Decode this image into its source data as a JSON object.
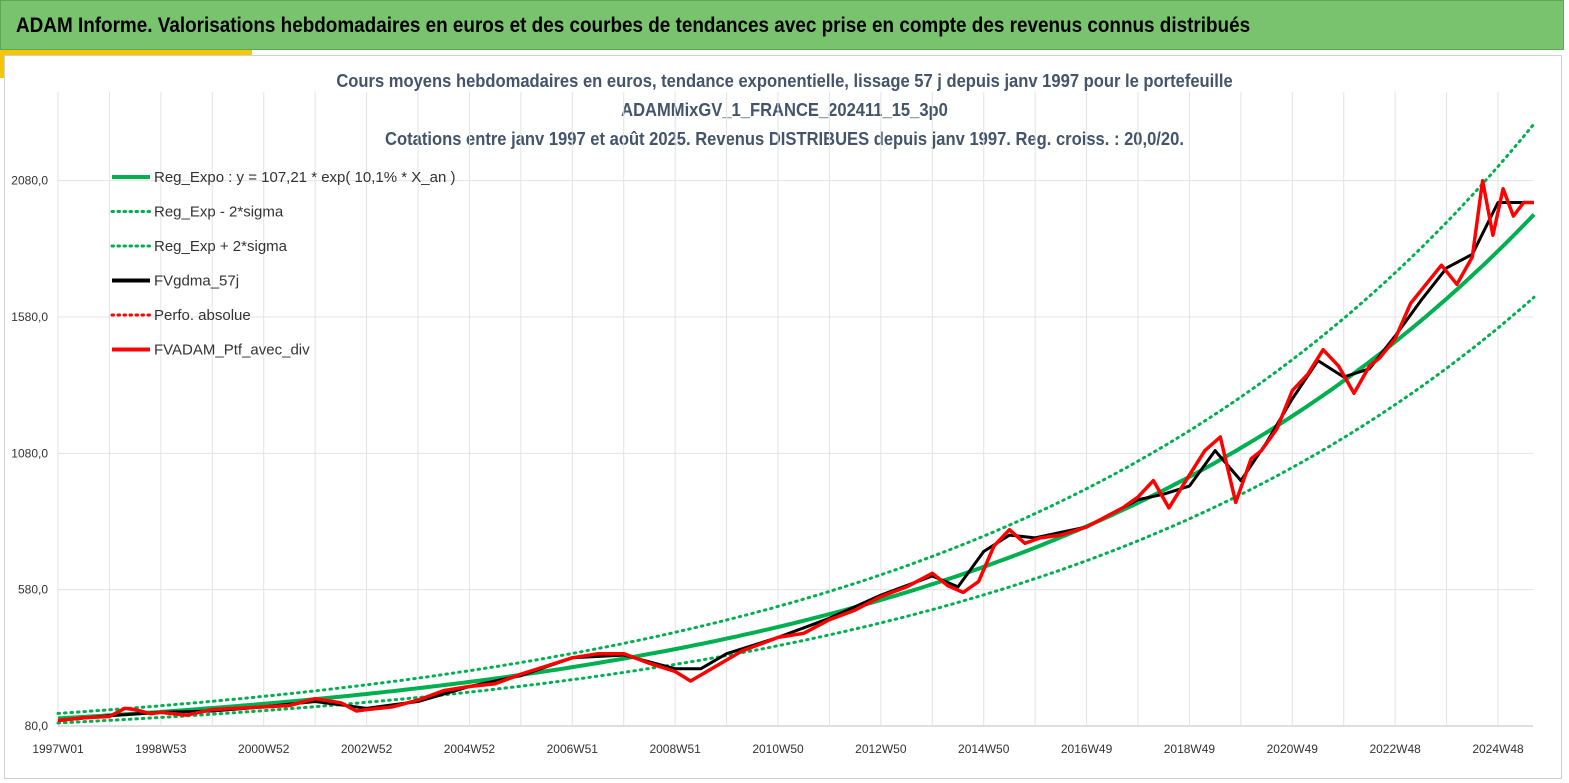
{
  "banner": {
    "title": "ADAM Informe. Valorisations hebdomadaires en euros et des courbes de tendances avec prise en compte des revenus connus distribués"
  },
  "colors": {
    "banner": "#79c36f",
    "accent": "#f7c600",
    "trend": "#00b050",
    "smoothed": "#000000",
    "portfolio": "#ff0000",
    "title": "#44546a"
  },
  "chart_data": {
    "type": "line",
    "title": [
      "Cours moyens hebdomadaires  en euros, tendance exponentielle, lissage 57 j depuis janv 1997 pour le portefeuille",
      "ADAMMixGV_1_FRANCE_202411_15_3p0",
      "Cotations  entre janv 1997 et août  2025. Revenus DISTRIBUES depuis janv 1997. Reg. croiss. : 20,0/20."
    ],
    "xlabel": "",
    "ylabel": "",
    "ylim": [
      80,
      2400
    ],
    "xlim": [
      1997.0,
      2025.7
    ],
    "y_ticks": [
      "80,0",
      "580,0",
      "1080,0",
      "1580,0",
      "2080,0"
    ],
    "y_tick_values": [
      80,
      580,
      1080,
      1580,
      2080
    ],
    "x_ticks": [
      "1997W01",
      "1998W53",
      "2000W52",
      "2002W52",
      "2004W52",
      "2006W51",
      "2008W51",
      "2010W50",
      "2012W50",
      "2014W50",
      "2016W49",
      "2018W49",
      "2020W49",
      "2022W48",
      "2024W48"
    ],
    "x_tick_values": [
      1997.0,
      1999.0,
      2001.0,
      2003.0,
      2005.0,
      2007.0,
      2009.0,
      2011.0,
      2013.0,
      2015.0,
      2017.0,
      2019.0,
      2021.0,
      2023.0,
      2025.0
    ],
    "legend": {
      "position": "top-left",
      "entries": [
        {
          "name": "Reg_Expo : y = 107,21 * exp( 10,1% *  X_an )",
          "color": "#00b050",
          "style": "solid"
        },
        {
          "name": "Reg_Exp - 2*sigma",
          "color": "#00b050",
          "style": "dotted"
        },
        {
          "name": "Reg_Exp + 2*sigma",
          "color": "#00b050",
          "style": "dotted"
        },
        {
          "name": "FVgdma_57j",
          "color": "#000000",
          "style": "solid"
        },
        {
          "name": "Perfo. absolue",
          "color": "#ff0000",
          "style": "dotted"
        },
        {
          "name": "FVADAM_Ptf_avec_div",
          "color": "#ff0000",
          "style": "solid"
        }
      ]
    },
    "trend": {
      "a": 107.21,
      "rate": 0.101,
      "lower_factor": 0.845,
      "upper_factor": 1.17
    },
    "series": [
      {
        "name": "FVADAM_Ptf_avec_div",
        "x": [
          1997.0,
          1997.5,
          1998.0,
          1998.3,
          1998.5,
          1998.8,
          1999.0,
          1999.5,
          2000.0,
          2000.5,
          2001.0,
          2001.5,
          2002.0,
          2002.5,
          2002.8,
          2003.0,
          2003.5,
          2004.0,
          2004.5,
          2005.0,
          2005.5,
          2006.0,
          2006.5,
          2007.0,
          2007.5,
          2008.0,
          2008.5,
          2009.0,
          2009.3,
          2009.8,
          2010.3,
          2011.0,
          2011.5,
          2012.0,
          2012.5,
          2013.0,
          2013.5,
          2014.0,
          2014.3,
          2014.6,
          2014.9,
          2015.2,
          2015.5,
          2015.8,
          2016.1,
          2016.5,
          2017.0,
          2017.3,
          2017.7,
          2018.0,
          2018.3,
          2018.6,
          2019.0,
          2019.3,
          2019.6,
          2019.9,
          2020.2,
          2020.4,
          2020.7,
          2021.0,
          2021.3,
          2021.6,
          2021.9,
          2022.2,
          2022.5,
          2022.7,
          2023.0,
          2023.3,
          2023.6,
          2023.9,
          2024.2,
          2024.5,
          2024.7,
          2024.9,
          2025.1,
          2025.3,
          2025.5,
          2025.7
        ],
        "values": [
          100,
          110,
          115,
          145,
          140,
          125,
          130,
          120,
          140,
          145,
          150,
          155,
          180,
          165,
          135,
          140,
          150,
          175,
          210,
          225,
          235,
          270,
          300,
          330,
          345,
          345,
          310,
          280,
          245,
          300,
          355,
          405,
          420,
          470,
          505,
          555,
          590,
          640,
          595,
          570,
          610,
          740,
          800,
          750,
          770,
          780,
          810,
          840,
          880,
          920,
          980,
          880,
          1000,
          1090,
          1140,
          900,
          1060,
          1090,
          1170,
          1310,
          1370,
          1460,
          1400,
          1300,
          1400,
          1430,
          1500,
          1630,
          1700,
          1770,
          1700,
          1800,
          2080,
          1880,
          2050,
          1950,
          2000,
          2000
        ]
      },
      {
        "name": "FVgdma_57j",
        "x": [
          1997.0,
          1998.0,
          1999.0,
          2000.0,
          2001.0,
          2002.0,
          2003.0,
          2004.0,
          2005.0,
          2006.0,
          2007.0,
          2008.0,
          2009.0,
          2009.5,
          2010.0,
          2011.0,
          2012.0,
          2013.0,
          2014.0,
          2014.5,
          2015.0,
          2015.5,
          2016.0,
          2016.5,
          2017.0,
          2017.5,
          2018.0,
          2018.5,
          2019.0,
          2019.5,
          2020.0,
          2020.5,
          2021.0,
          2021.5,
          2022.0,
          2022.5,
          2023.0,
          2023.5,
          2024.0,
          2024.5,
          2025.0,
          2025.5,
          2025.7
        ],
        "values": [
          100,
          118,
          130,
          135,
          150,
          170,
          145,
          170,
          225,
          265,
          330,
          340,
          290,
          290,
          345,
          405,
          475,
          560,
          630,
          590,
          720,
          780,
          770,
          790,
          810,
          860,
          910,
          930,
          960,
          1090,
          980,
          1120,
          1280,
          1420,
          1360,
          1390,
          1510,
          1640,
          1760,
          1810,
          2000,
          2000,
          2000
        ]
      }
    ]
  }
}
